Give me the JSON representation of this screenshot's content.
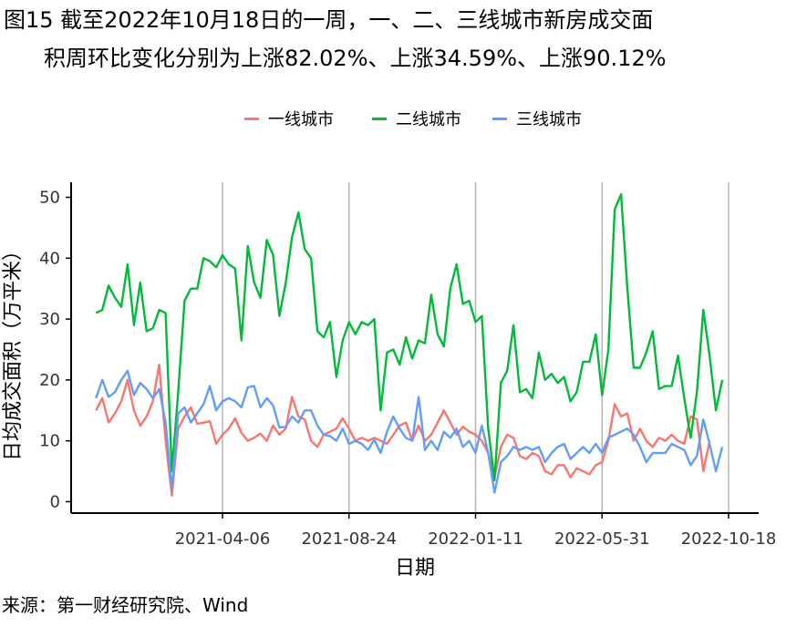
{
  "title_line1": "图15  截至2022年10月18日的一周，一、二、三线城市新房成交面",
  "title_line2": "积周环比变化分别为上涨82.02%、上涨34.59%、上涨90.12%",
  "source": "来源：第一财经研究院、Wind",
  "chart_data": {
    "type": "line",
    "xlabel": "日期",
    "ylabel": "日均成交面积（万平米）",
    "ylim": [
      0,
      52
    ],
    "yticks": [
      0,
      10,
      20,
      30,
      40,
      50
    ],
    "xticks": [
      "2021-04-06",
      "2021-08-24",
      "2022-01-11",
      "2022-05-31",
      "2022-10-18"
    ],
    "x_start": "2020-11-17",
    "x_end": "2022-10-18",
    "x_interval": "weekly",
    "grid": "vertical at x ticks",
    "legend_position": "top",
    "series": [
      {
        "name": "一线城市",
        "color": "#F8766D",
        "values": [
          15,
          17,
          13,
          14.5,
          16.5,
          20,
          15,
          12.5,
          14,
          16.5,
          22.5,
          10,
          1,
          12,
          14,
          15.5,
          12.8,
          13,
          13.2,
          9.5,
          11,
          12,
          13.7,
          11.3,
          10,
          10.5,
          11.2,
          10,
          12.5,
          11,
          12,
          17.2,
          14,
          13.5,
          10,
          9,
          11,
          11.5,
          12,
          13.7,
          12,
          10,
          10.5,
          10,
          10.5,
          10,
          9.5,
          11,
          12.5,
          13,
          10,
          12.5,
          10,
          11,
          13,
          15,
          13,
          11,
          12.3,
          11.5,
          11,
          10,
          8,
          4,
          9,
          11,
          10.5,
          7.5,
          7,
          8,
          7.5,
          5,
          4.5,
          6,
          6,
          4,
          5.5,
          5,
          4.5,
          6,
          6.5,
          10,
          16,
          14,
          14.5,
          10,
          12,
          10,
          9,
          10.5,
          10,
          11,
          10,
          9.5,
          14,
          13.5,
          5,
          10
        ]
      },
      {
        "name": "二线城市",
        "color": "#00BA38",
        "values": [
          31,
          31.5,
          35.5,
          33.5,
          32,
          39,
          29,
          36,
          28,
          28.5,
          31.5,
          31,
          5,
          18,
          33,
          35,
          35,
          40,
          39.5,
          38.5,
          40.5,
          39,
          38.3,
          26.5,
          42,
          36,
          33.5,
          43,
          40.5,
          30.5,
          36,
          43.5,
          47.5,
          41.5,
          40,
          28,
          27,
          29.5,
          20.5,
          26.5,
          29.5,
          27.5,
          29.5,
          29,
          30,
          15,
          24.5,
          25,
          22.5,
          27,
          23.5,
          26.5,
          26,
          34,
          27.5,
          25.5,
          35,
          39,
          32.5,
          33,
          29.5,
          30.5,
          12,
          3.5,
          19.5,
          21.5,
          29,
          18,
          18.5,
          17,
          24.5,
          20,
          21,
          19.5,
          20.5,
          16.5,
          18,
          23,
          23,
          27.5,
          17.5,
          25,
          48,
          50.5,
          35,
          22,
          22,
          24.5,
          28,
          18.5,
          19,
          19,
          24,
          17,
          10.5,
          18,
          31.5,
          24,
          15,
          20
        ]
      },
      {
        "name": "三线城市",
        "color": "#619CFF",
        "values": [
          17,
          20,
          17.2,
          18,
          20,
          21.5,
          17.5,
          19.5,
          18.5,
          17,
          18.5,
          13,
          2,
          14.5,
          15.5,
          13,
          14.5,
          16,
          19,
          15,
          16.5,
          17,
          16.5,
          15.5,
          18.8,
          19,
          15.5,
          17,
          15.8,
          12.2,
          12.3,
          14,
          13,
          15,
          15,
          12.5,
          11,
          10.8,
          10,
          12,
          9.5,
          10,
          9.5,
          8.5,
          10.2,
          8,
          11.5,
          14,
          12,
          10.5,
          10,
          17.2,
          8.5,
          10,
          8.5,
          11.5,
          10.5,
          12,
          9,
          10,
          8,
          12.5,
          8,
          1.5,
          6.5,
          7.5,
          9,
          8.5,
          9,
          8.5,
          9,
          6.5,
          8,
          9,
          9.5,
          7,
          8,
          9,
          8,
          9.5,
          8,
          10.5,
          11,
          11.5,
          12,
          11,
          9,
          6.5,
          8,
          8,
          8,
          9.5,
          9,
          8.5,
          6,
          7.5,
          13.5,
          9.5,
          5,
          9
        ]
      }
    ]
  }
}
